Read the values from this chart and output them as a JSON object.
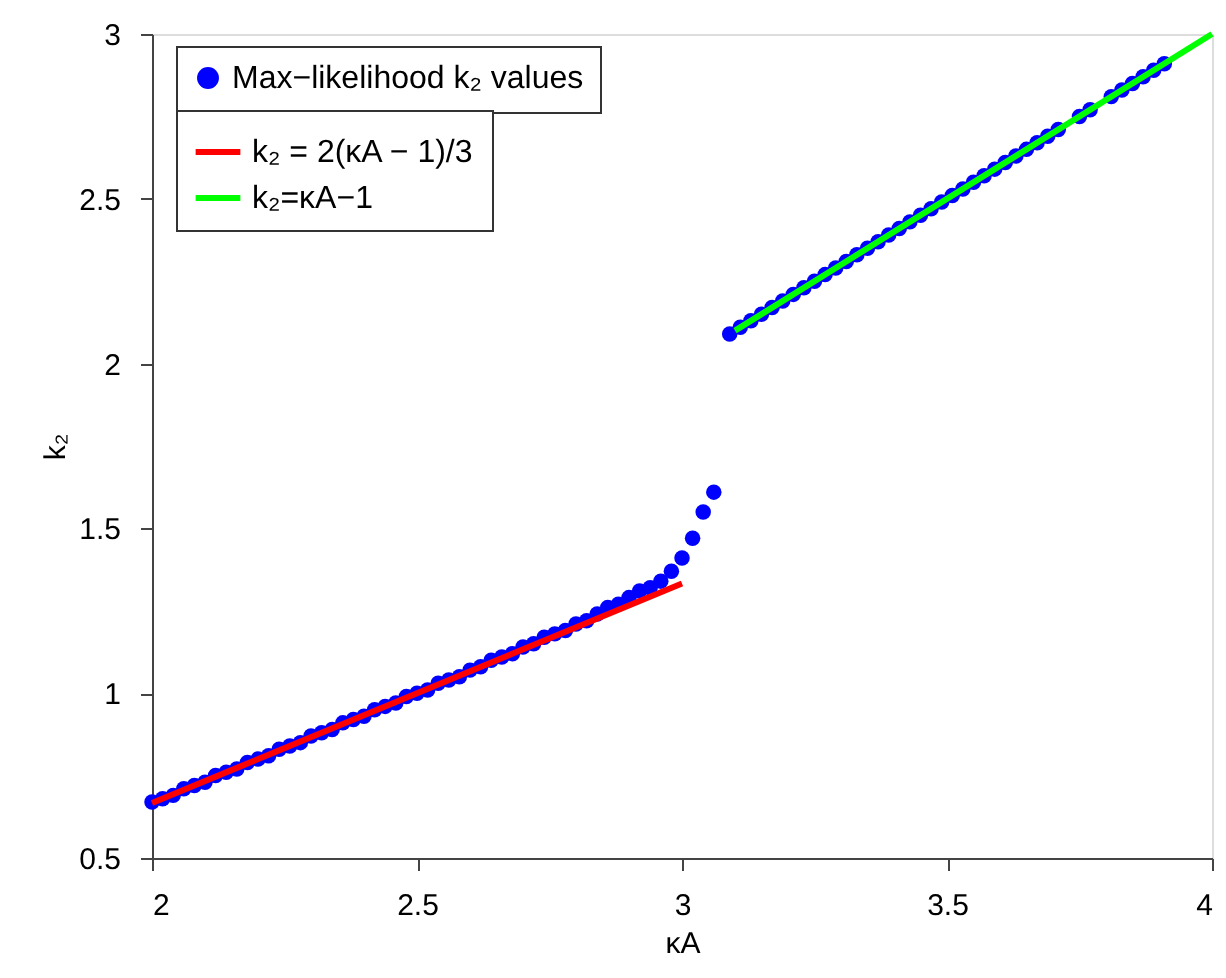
{
  "chart_data": {
    "type": "scatter",
    "xlabel": "κA",
    "ylabel": "k₂",
    "xlim": [
      2,
      4
    ],
    "xticks": [
      2,
      2.5,
      3,
      3.5,
      4
    ],
    "ylim": [
      0.5,
      3
    ],
    "yticks": [
      0.5,
      1,
      1.5,
      2,
      2.5,
      3
    ],
    "grid": false,
    "legend": "top left",
    "series": [
      {
        "name": "Max−likelihood k₂ values",
        "marker": "circle",
        "color": "#0000ff",
        "x": [
          2.0,
          2.02,
          2.04,
          2.06,
          2.08,
          2.1,
          2.12,
          2.14,
          2.16,
          2.18,
          2.2,
          2.22,
          2.24,
          2.26,
          2.28,
          2.3,
          2.32,
          2.34,
          2.36,
          2.38,
          2.4,
          2.42,
          2.44,
          2.46,
          2.48,
          2.5,
          2.52,
          2.54,
          2.56,
          2.58,
          2.6,
          2.62,
          2.64,
          2.66,
          2.68,
          2.7,
          2.72,
          2.74,
          2.76,
          2.78,
          2.8,
          2.82,
          2.84,
          2.86,
          2.88,
          2.9,
          2.92,
          2.94,
          2.96,
          2.98,
          3.0,
          3.02,
          3.04,
          3.06,
          3.09,
          3.11,
          3.13,
          3.15,
          3.17,
          3.19,
          3.21,
          3.23,
          3.25,
          3.27,
          3.29,
          3.31,
          3.33,
          3.35,
          3.37,
          3.39,
          3.41,
          3.43,
          3.45,
          3.47,
          3.49,
          3.51,
          3.53,
          3.55,
          3.57,
          3.59,
          3.61,
          3.63,
          3.65,
          3.67,
          3.69,
          3.71,
          3.75,
          3.77,
          3.81,
          3.83,
          3.85,
          3.87,
          3.89,
          3.91
        ],
        "values": [
          0.67,
          0.68,
          0.69,
          0.71,
          0.72,
          0.73,
          0.75,
          0.76,
          0.77,
          0.79,
          0.8,
          0.81,
          0.83,
          0.84,
          0.85,
          0.87,
          0.88,
          0.89,
          0.91,
          0.92,
          0.93,
          0.95,
          0.96,
          0.97,
          0.99,
          1.0,
          1.01,
          1.03,
          1.04,
          1.05,
          1.07,
          1.08,
          1.1,
          1.11,
          1.12,
          1.14,
          1.15,
          1.17,
          1.18,
          1.19,
          1.21,
          1.22,
          1.24,
          1.26,
          1.27,
          1.29,
          1.31,
          1.32,
          1.34,
          1.37,
          1.41,
          1.47,
          1.55,
          1.61,
          2.09,
          2.11,
          2.13,
          2.15,
          2.17,
          2.19,
          2.21,
          2.23,
          2.25,
          2.27,
          2.29,
          2.31,
          2.33,
          2.35,
          2.37,
          2.39,
          2.41,
          2.43,
          2.45,
          2.47,
          2.49,
          2.51,
          2.53,
          2.55,
          2.57,
          2.59,
          2.61,
          2.63,
          2.65,
          2.67,
          2.69,
          2.71,
          2.75,
          2.77,
          2.81,
          2.83,
          2.85,
          2.87,
          2.89,
          2.91
        ]
      },
      {
        "name": "k₂ = 2(κA − 1)/3",
        "type": "line",
        "line_style": "solid",
        "color": "#ff0000",
        "x": [
          2,
          3
        ],
        "values": [
          0.667,
          1.333
        ]
      },
      {
        "name": "k₂=κA−1",
        "type": "line",
        "line_style": "solid",
        "color": "#00ff00",
        "x": [
          3.1,
          4
        ],
        "values": [
          2.1,
          3.0
        ]
      }
    ]
  }
}
